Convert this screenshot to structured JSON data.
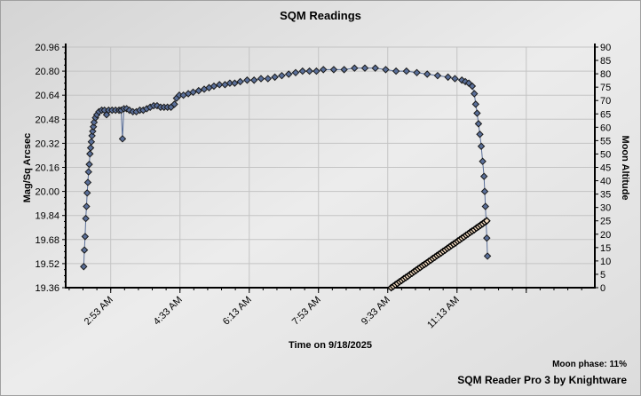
{
  "chart_data": {
    "type": "line",
    "title": "SQM Readings",
    "xlabel": "Time on 9/18/2025",
    "ylabel": "Mag/Sq Arcsec",
    "y2label": "Moon Altitude",
    "xlim": [
      "1:48",
      "14:32"
    ],
    "ylim": [
      19.36,
      20.96
    ],
    "y2lim": [
      0,
      90
    ],
    "grid": true,
    "x_ticks": [
      {
        "t": "2:53",
        "label": "2:53 AM"
      },
      {
        "t": "4:33",
        "label": "4:33 AM"
      },
      {
        "t": "6:13",
        "label": "6:13 AM"
      },
      {
        "t": "7:53",
        "label": "7:53 AM"
      },
      {
        "t": "9:33",
        "label": "9:33 AM"
      },
      {
        "t": "11:13",
        "label": "11:13 AM"
      },
      {
        "t": "12:53",
        "label": ""
      }
    ],
    "y_ticks": [
      "19.36",
      "19.52",
      "19.68",
      "19.84",
      "20.00",
      "20.16",
      "20.32",
      "20.48",
      "20.64",
      "20.80",
      "20.96"
    ],
    "y2_ticks": [
      "0",
      "5",
      "10",
      "15",
      "20",
      "25",
      "30",
      "35",
      "40",
      "45",
      "50",
      "55",
      "60",
      "65",
      "70",
      "75",
      "80",
      "85",
      "90"
    ],
    "series": [
      {
        "name": "SQM",
        "axis": "left",
        "color": "#5a6f99",
        "points": [
          [
            "2:14",
            19.5
          ],
          [
            "2:15",
            19.61
          ],
          [
            "2:16",
            19.7
          ],
          [
            "2:17",
            19.82
          ],
          [
            "2:18",
            19.9
          ],
          [
            "2:19",
            19.99
          ],
          [
            "2:20",
            20.06
          ],
          [
            "2:21",
            20.13
          ],
          [
            "2:22",
            20.18
          ],
          [
            "2:23",
            20.25
          ],
          [
            "2:24",
            20.29
          ],
          [
            "2:25",
            20.33
          ],
          [
            "2:26",
            20.37
          ],
          [
            "2:27",
            20.4
          ],
          [
            "2:28",
            20.43
          ],
          [
            "2:29",
            20.46
          ],
          [
            "2:31",
            20.49
          ],
          [
            "2:33",
            20.51
          ],
          [
            "2:36",
            20.53
          ],
          [
            "2:40",
            20.54
          ],
          [
            "2:44",
            20.54
          ],
          [
            "2:47",
            20.51
          ],
          [
            "2:50",
            20.54
          ],
          [
            "2:55",
            20.54
          ],
          [
            "3:00",
            20.54
          ],
          [
            "3:05",
            20.54
          ],
          [
            "3:08",
            20.54
          ],
          [
            "3:10",
            20.35
          ],
          [
            "3:12",
            20.55
          ],
          [
            "3:16",
            20.55
          ],
          [
            "3:20",
            20.54
          ],
          [
            "3:25",
            20.53
          ],
          [
            "3:30",
            20.53
          ],
          [
            "3:35",
            20.54
          ],
          [
            "3:40",
            20.54
          ],
          [
            "3:45",
            20.55
          ],
          [
            "3:50",
            20.56
          ],
          [
            "3:55",
            20.57
          ],
          [
            "4:00",
            20.57
          ],
          [
            "4:05",
            20.56
          ],
          [
            "4:10",
            20.56
          ],
          [
            "4:15",
            20.56
          ],
          [
            "4:20",
            20.56
          ],
          [
            "4:25",
            20.58
          ],
          [
            "4:28",
            20.62
          ],
          [
            "4:32",
            20.64
          ],
          [
            "4:38",
            20.64
          ],
          [
            "4:45",
            20.65
          ],
          [
            "4:52",
            20.66
          ],
          [
            "5:00",
            20.67
          ],
          [
            "5:08",
            20.68
          ],
          [
            "5:15",
            20.69
          ],
          [
            "5:22",
            20.7
          ],
          [
            "5:30",
            20.71
          ],
          [
            "5:38",
            20.71
          ],
          [
            "5:45",
            20.72
          ],
          [
            "5:52",
            20.72
          ],
          [
            "6:00",
            20.73
          ],
          [
            "6:10",
            20.74
          ],
          [
            "6:20",
            20.74
          ],
          [
            "6:30",
            20.75
          ],
          [
            "6:40",
            20.75
          ],
          [
            "6:50",
            20.76
          ],
          [
            "7:00",
            20.77
          ],
          [
            "7:10",
            20.78
          ],
          [
            "7:20",
            20.79
          ],
          [
            "7:30",
            20.8
          ],
          [
            "7:40",
            20.8
          ],
          [
            "7:50",
            20.8
          ],
          [
            "8:00",
            20.81
          ],
          [
            "8:15",
            20.81
          ],
          [
            "8:30",
            20.81
          ],
          [
            "8:45",
            20.82
          ],
          [
            "9:00",
            20.82
          ],
          [
            "9:15",
            20.82
          ],
          [
            "9:30",
            20.81
          ],
          [
            "9:45",
            20.8
          ],
          [
            "10:00",
            20.8
          ],
          [
            "10:15",
            20.79
          ],
          [
            "10:30",
            20.78
          ],
          [
            "10:45",
            20.77
          ],
          [
            "11:00",
            20.76
          ],
          [
            "11:10",
            20.75
          ],
          [
            "11:20",
            20.74
          ],
          [
            "11:25",
            20.73
          ],
          [
            "11:30",
            20.72
          ],
          [
            "11:35",
            20.7
          ],
          [
            "11:38",
            20.65
          ],
          [
            "11:40",
            20.58
          ],
          [
            "11:42",
            20.52
          ],
          [
            "11:44",
            20.45
          ],
          [
            "11:46",
            20.38
          ],
          [
            "11:48",
            20.3
          ],
          [
            "11:50",
            20.2
          ],
          [
            "11:52",
            20.1
          ],
          [
            "11:53",
            20.0
          ],
          [
            "11:54",
            19.9
          ],
          [
            "11:55",
            19.8
          ],
          [
            "11:56",
            19.69
          ],
          [
            "11:57",
            19.57
          ]
        ]
      },
      {
        "name": "Moon Altitude",
        "axis": "right",
        "color": "#f5dcc0",
        "x_start": "9:38",
        "interval_min": 3,
        "values": [
          0,
          0.5,
          1.1,
          1.6,
          2.2,
          2.7,
          3.3,
          3.8,
          4.3,
          4.9,
          5.4,
          6.0,
          6.5,
          7.1,
          7.6,
          8.2,
          8.7,
          9.2,
          9.8,
          10.3,
          10.9,
          11.4,
          12.0,
          12.5,
          13.0,
          13.6,
          14.1,
          14.7,
          15.2,
          15.8,
          16.3,
          16.8,
          17.4,
          17.9,
          18.5,
          19.0,
          19.6,
          20.1,
          20.7,
          21.2,
          21.7,
          22.3,
          22.8,
          23.4,
          23.9,
          24.5,
          25.0
        ]
      }
    ]
  },
  "footer": {
    "moon_phase": "Moon phase: 11%",
    "credit": "SQM Reader Pro 3 by Knightware"
  }
}
